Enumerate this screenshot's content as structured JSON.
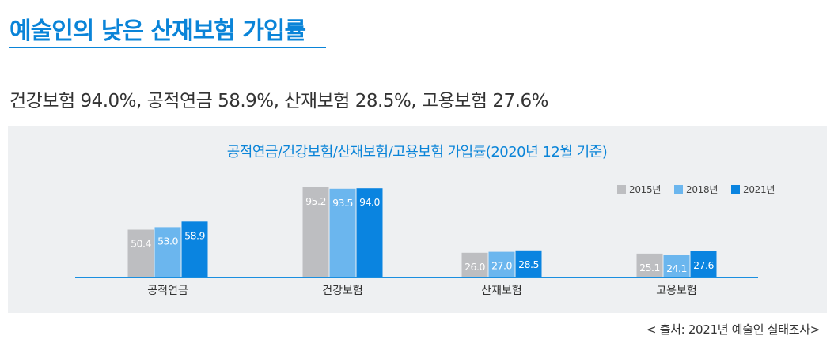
{
  "header": {
    "title": "예술인의 낮은 산재보험 가입률",
    "subtitle": "건강보험 94.0%, 공적연금 58.9%, 산재보험 28.5%, 고용보험 27.6%"
  },
  "colors": {
    "accent": "#0a84d8",
    "series_2015": "#bdbec1",
    "series_2018": "#6bb6ee",
    "series_2021": "#0a84e0"
  },
  "footer": {
    "source": "< 출처: 2021년 예술인 실태조사>"
  },
  "chart_data": {
    "type": "bar",
    "title": "공적연금/건강보험/산재보험/고용보험 가입률(2020년 12월 기준)",
    "categories": [
      "공적연금",
      "건강보험",
      "산재보험",
      "고용보험"
    ],
    "series": [
      {
        "name": "2015년",
        "values": [
          50.4,
          95.2,
          26.0,
          25.1
        ]
      },
      {
        "name": "2018년",
        "values": [
          53.0,
          93.5,
          27.0,
          24.1
        ]
      },
      {
        "name": "2021년",
        "values": [
          58.9,
          94.0,
          28.5,
          27.6
        ]
      }
    ],
    "ylim": [
      0,
      100
    ],
    "xlabel": "",
    "ylabel": "",
    "grid": false,
    "legend_position": "top-right",
    "data_labels": true
  }
}
